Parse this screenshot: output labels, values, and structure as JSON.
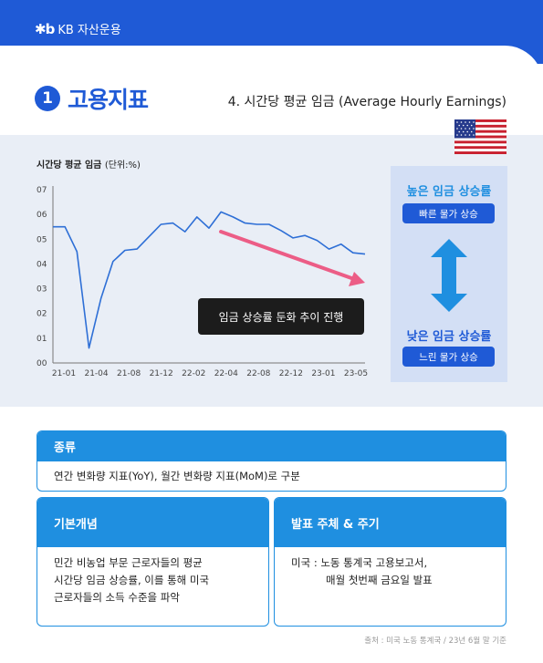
{
  "header": {
    "logo_mark": "✱b",
    "logo_text": "KB 자산운용"
  },
  "title": {
    "number": "1",
    "main": "고용지표",
    "subtitle": "4. 시간당 평균 임금 (Average Hourly Earnings)"
  },
  "flag": {
    "country": "USA"
  },
  "chart_data": {
    "type": "line",
    "title": "시간당 평균 임금",
    "unit_label": "(단위:%)",
    "y_ticks": [
      "07",
      "06",
      "05",
      "04",
      "03",
      "02",
      "01",
      "00"
    ],
    "ylim": [
      0,
      7
    ],
    "x_ticks": [
      "21-01",
      "21-04",
      "21-08",
      "21-12",
      "22-02",
      "22-04",
      "22-08",
      "22-12",
      "23-01",
      "23-05"
    ],
    "series": [
      {
        "color": "#2e6fd6",
        "values": [
          5.5,
          5.5,
          4.5,
          0.6,
          2.6,
          4.1,
          4.55,
          4.6,
          5.1,
          5.6,
          5.65,
          5.3,
          5.9,
          5.45,
          6.1,
          5.9,
          5.65,
          5.6,
          5.6,
          5.35,
          5.05,
          5.15,
          4.95,
          4.6,
          4.8,
          4.45,
          4.4
        ]
      }
    ],
    "trend_arrow": {
      "color": "#ec5d86",
      "label": "임금 상승률 둔화 추이 진행"
    },
    "grid": false
  },
  "side": {
    "high": "높은 임금 상승률",
    "high_pill": "빠른 물가 상승",
    "low": "낮은 임금 상승률",
    "low_pill": "느린 물가 상승"
  },
  "info": {
    "type_head": "종류",
    "type_body": "연간 변화량 지표(YoY), 월간 변화량 지표(MoM)로 구분",
    "concept_head": "기본개념",
    "concept_lines": [
      "민간 비농업 부문 근로자들의 평균",
      "시간당 임금 상승률, 이를 통해 미국",
      "근로자들의 소득 수준을 파악"
    ],
    "release_head": "발표 주체 & 주기",
    "release_lines": [
      "미국 : 노동 통계국 고용보고서,",
      "매월 첫번째 금요일 발표"
    ]
  },
  "footnote": "출처 : 미국 노동 통계국 / 23년 6월 말 기준",
  "colors": {
    "brand": "#1f5ad6",
    "accent": "#1f8fe0",
    "panel": "#e9eef6"
  }
}
